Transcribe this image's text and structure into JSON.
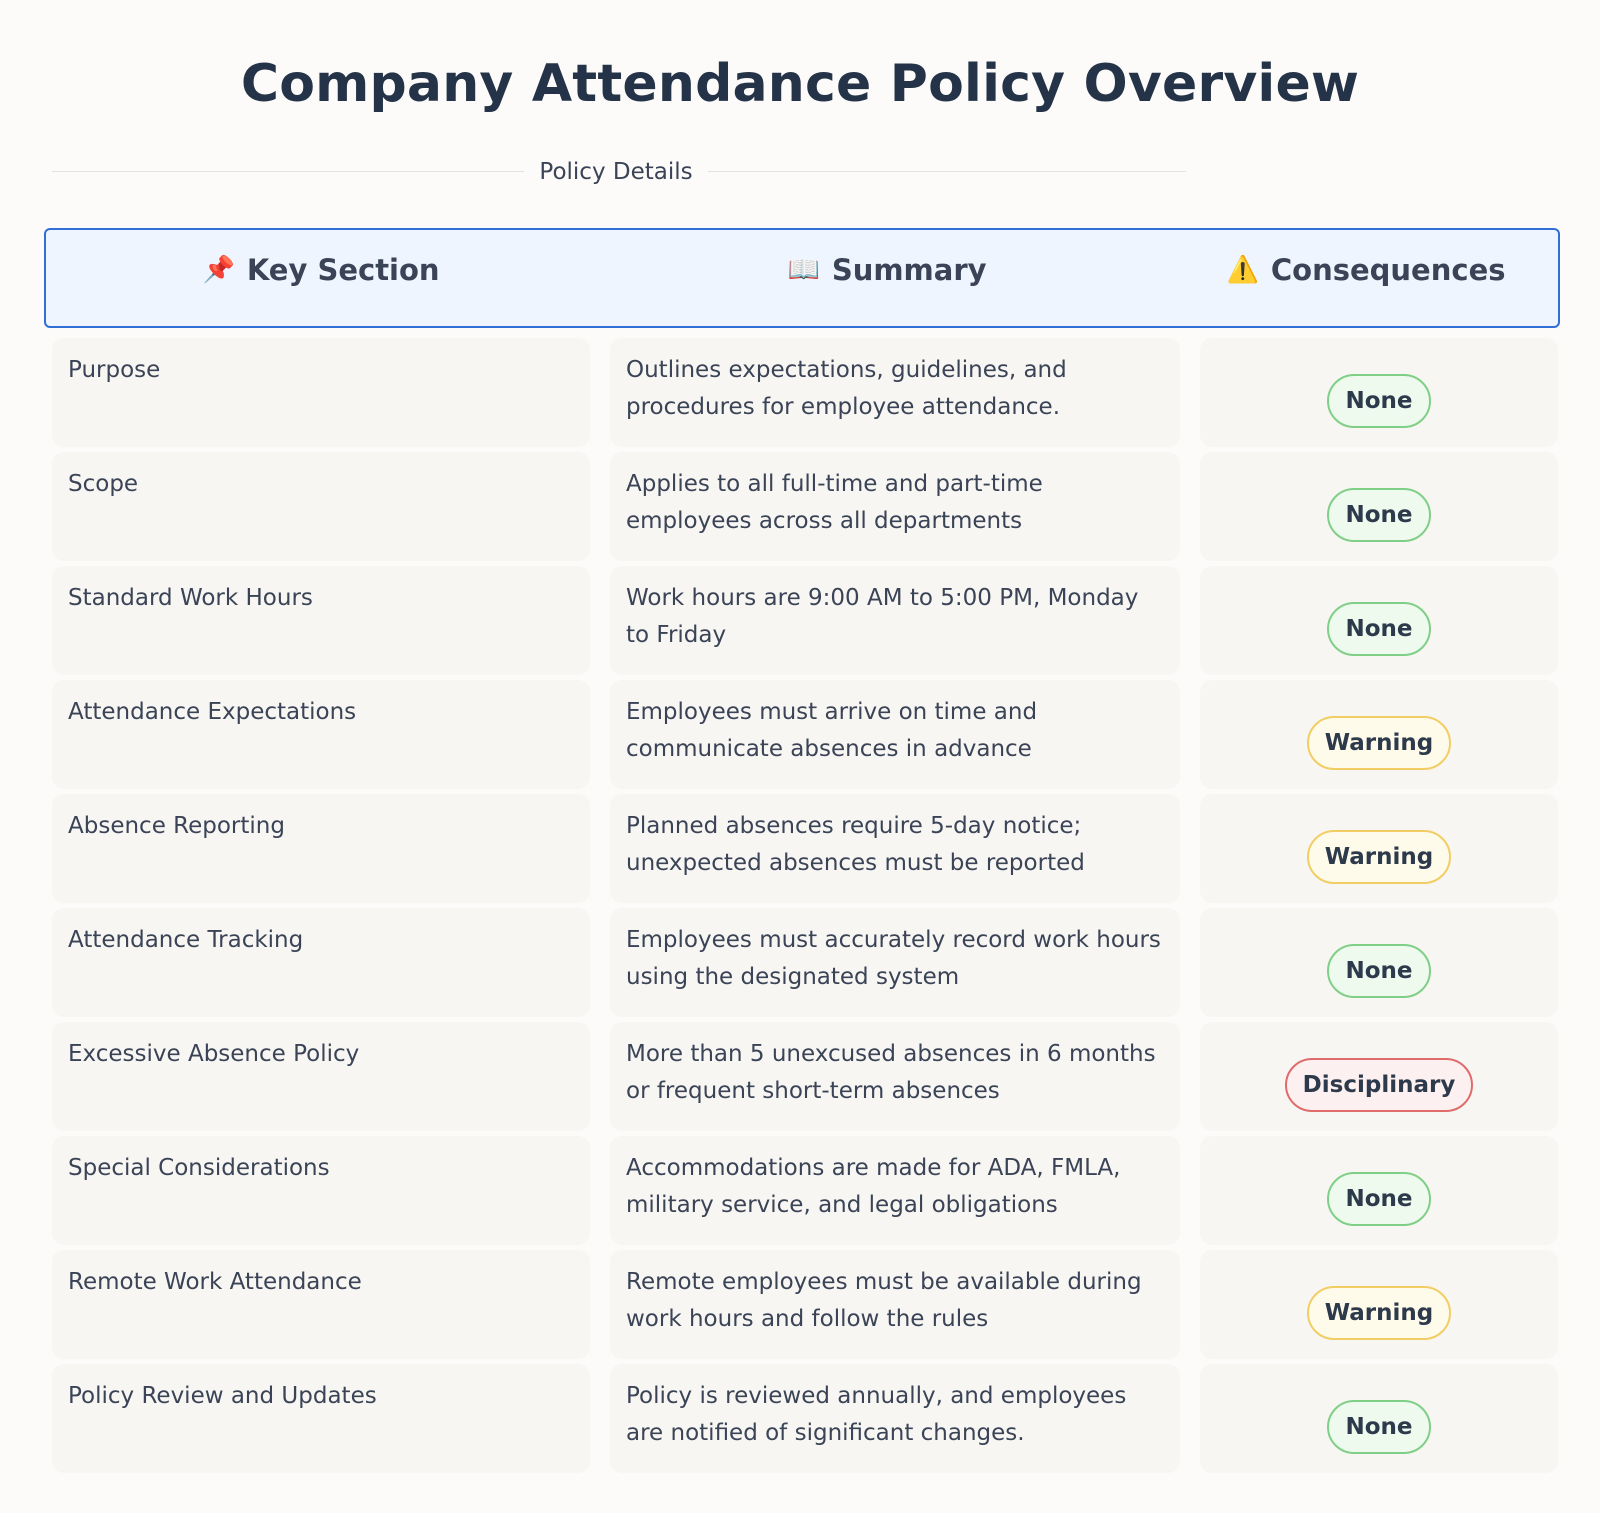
{
  "title": "Company Attendance Policy Overview",
  "section_label": "Policy Details",
  "header": {
    "key_icon": "📌",
    "key_label": "Key Section",
    "summary_icon": "📖",
    "summary_label": "Summary",
    "consequences_icon": "⚠️",
    "consequences_label": "Consequences"
  },
  "rows": [
    {
      "section": "Purpose",
      "summary": "Outlines expectations, guidelines, and procedures for employee attendance.",
      "consequence": "None",
      "level": "none"
    },
    {
      "section": "Scope",
      "summary": "Applies to all full-time and part-time employees across all departments",
      "consequence": "None",
      "level": "none"
    },
    {
      "section": "Standard Work Hours",
      "summary": "Work hours are 9:00 AM to 5:00 PM, Monday to Friday",
      "consequence": "None",
      "level": "none"
    },
    {
      "section": "Attendance Expectations",
      "summary": "Employees must arrive on time and communicate absences in advance",
      "consequence": "Warning",
      "level": "warning"
    },
    {
      "section": "Absence Reporting",
      "summary": "Planned absences require 5-day notice; unexpected absences must be reported",
      "consequence": "Warning",
      "level": "warning"
    },
    {
      "section": "Attendance Tracking",
      "summary": "Employees must accurately record work hours using the designated system",
      "consequence": "None",
      "level": "none"
    },
    {
      "section": "Excessive Absence Policy",
      "summary": "More than 5 unexcused absences in 6 months or frequent short-term absences",
      "consequence": "Disciplinary",
      "level": "disciplinary"
    },
    {
      "section": "Special Considerations",
      "summary": "Accommodations are made for ADA, FMLA, military service, and legal obligations",
      "consequence": "None",
      "level": "none"
    },
    {
      "section": "Remote Work Attendance",
      "summary": "Remote employees must be available during work hours and follow the rules",
      "consequence": "Warning",
      "level": "warning"
    },
    {
      "section": "Policy Review and Updates",
      "summary": "Policy is reviewed annually, and employees are notified of significant changes.",
      "consequence": "None",
      "level": "none"
    }
  ],
  "colors": {
    "header_border": "#2f6fd6",
    "header_bg": "#eef5ff",
    "none": "#7fcf86",
    "warning": "#f1cd63",
    "disciplinary": "#e06b6b"
  }
}
